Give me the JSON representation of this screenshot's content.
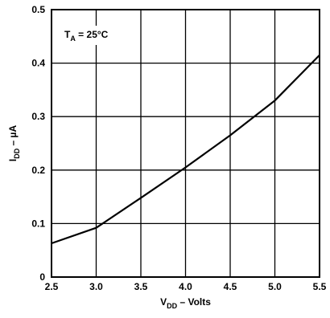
{
  "chart_data": {
    "type": "line",
    "annotation": {
      "main": "T",
      "sub": "A",
      "rest": " = 25°C"
    },
    "xlabel": {
      "main": "V",
      "sub": "DD",
      "rest": " – Volts"
    },
    "ylabel": {
      "main": "I",
      "sub": "DD",
      "rest": " – µA"
    },
    "xlim": [
      2.5,
      5.5
    ],
    "ylim": [
      0,
      0.5
    ],
    "x_ticks": [
      "2.5",
      "3.0",
      "3.5",
      "4.0",
      "4.5",
      "5.0",
      "5.5"
    ],
    "y_ticks": [
      "0",
      "0.1",
      "0.2",
      "0.3",
      "0.4",
      "0.5"
    ],
    "grid": true,
    "series": [
      {
        "x": [
          2.5,
          3.0,
          3.5,
          4.0,
          4.5,
          5.0,
          5.5
        ],
        "y": [
          0.063,
          0.092,
          0.148,
          0.205,
          0.265,
          0.33,
          0.415
        ]
      }
    ]
  }
}
